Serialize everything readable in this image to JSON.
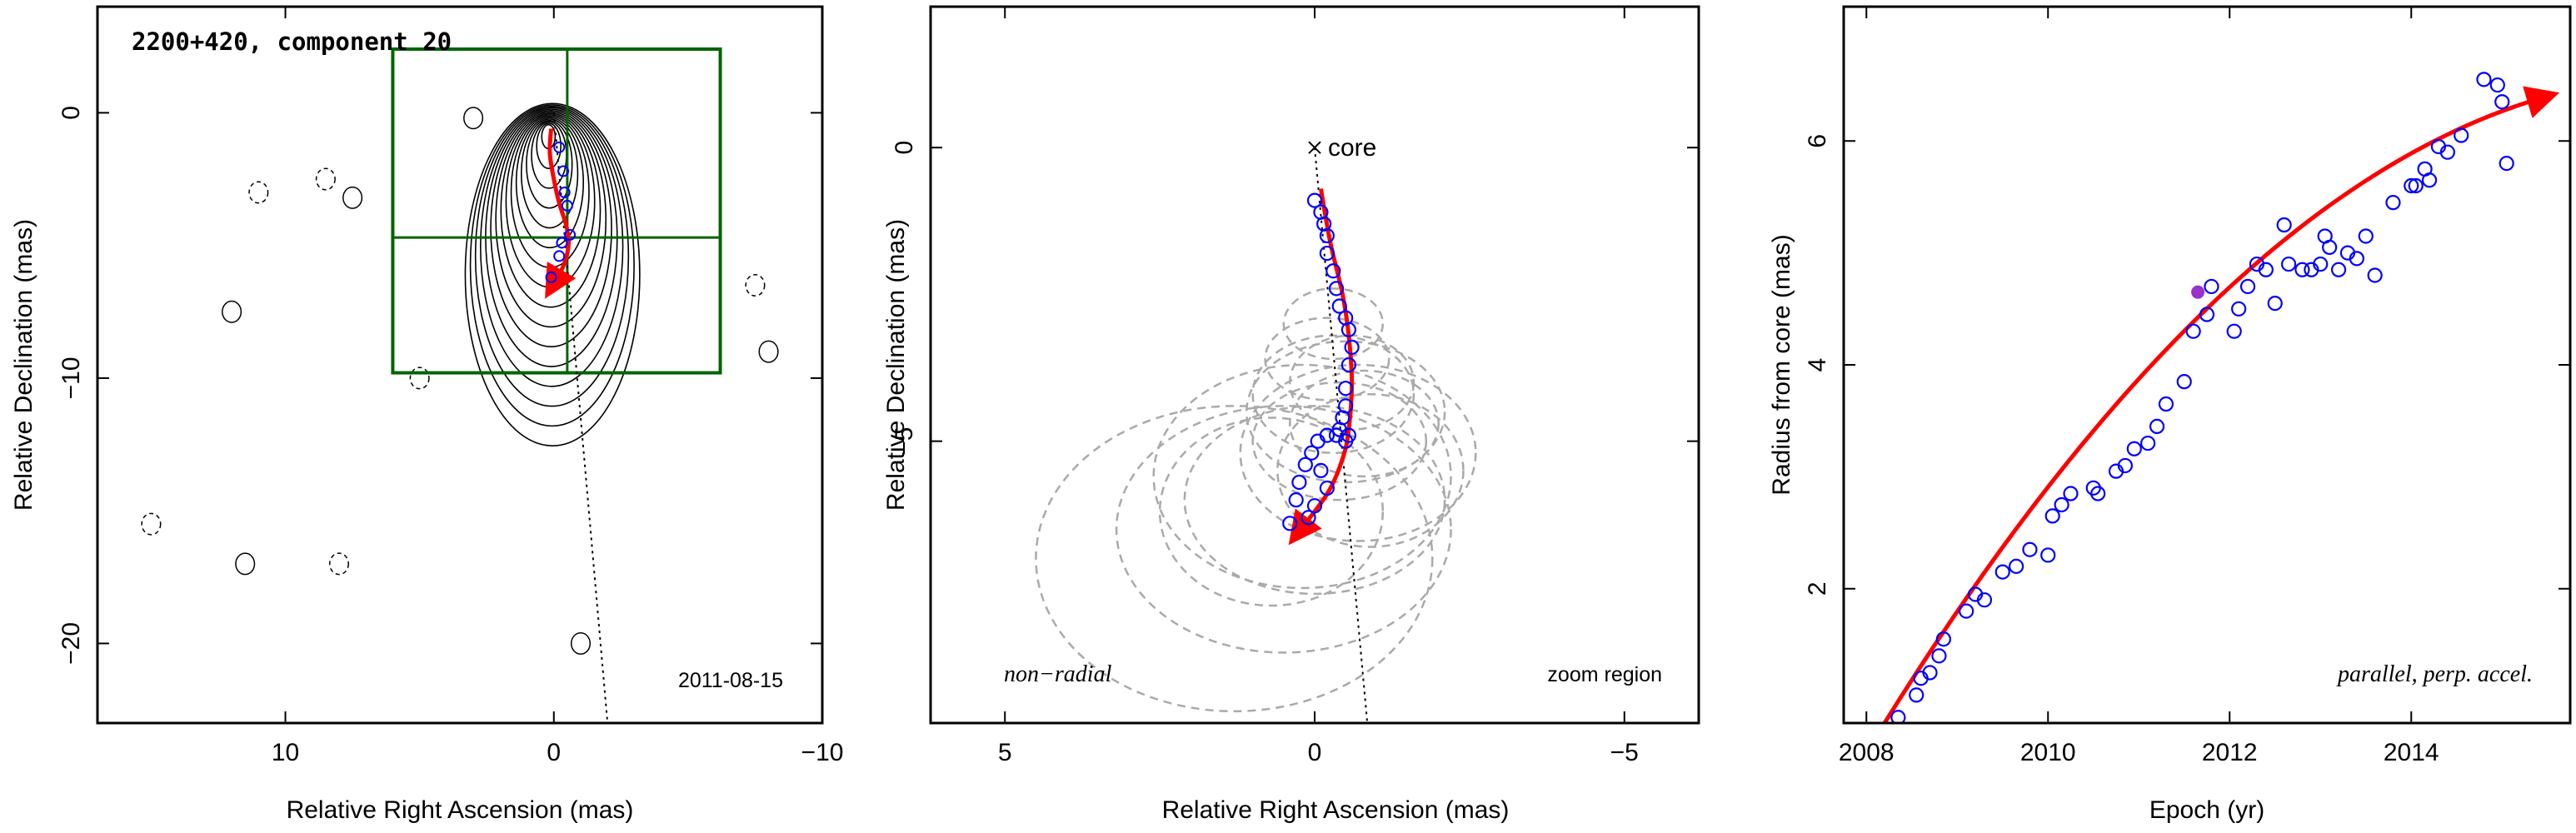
{
  "colors": {
    "fit_arrow": "#ff0000",
    "points": "#0000ff",
    "zoom_box": "#006400",
    "ellipses": "#aaaaaa",
    "contours": "#000000"
  },
  "chart_data": [
    {
      "type": "contour",
      "id": "map",
      "title": "2200+420, component 20",
      "xlabel": "Relative Right Ascension (mas)",
      "ylabel": "Relative Declination (mas)",
      "xlim": [
        17,
        -10
      ],
      "ylim": [
        -23,
        4
      ],
      "xticks": [
        10,
        0,
        -10
      ],
      "yticks": [
        0,
        -10,
        -20
      ],
      "xtick_labels": [
        "10",
        "0",
        "−10"
      ],
      "ytick_labels": [
        "0",
        "−10",
        "−20"
      ],
      "date_label": "2011-08-15",
      "core": [
        0,
        0
      ],
      "zoom_box": {
        "x": [
          6,
          -6.2
        ],
        "y": [
          2.4,
          -9.8
        ],
        "cross": [
          -0.5,
          -4.7
        ]
      },
      "radial_line": {
        "from": [
          0,
          0
        ],
        "to": [
          -2,
          -23
        ]
      },
      "fit_path": {
        "x": [
          0.1,
          0.15,
          0.0,
          -0.2,
          -0.45,
          -0.55,
          -0.5,
          -0.3,
          0.1
        ],
        "y": [
          -0.6,
          -1.5,
          -2.5,
          -3.4,
          -4.2,
          -4.8,
          -5.3,
          -5.9,
          -6.6
        ]
      },
      "points": {
        "x": [
          -0.2,
          -0.35,
          -0.4,
          -0.5,
          -0.6,
          -0.3,
          -0.2,
          0.1
        ],
        "y": [
          -1.3,
          -2.2,
          -3.0,
          -3.5,
          -4.6,
          -4.9,
          -5.4,
          -6.2
        ]
      },
      "contour_peak": [
        0.2,
        -0.3
      ],
      "blobs": [
        [
          12,
          -7.5
        ],
        [
          8.5,
          -2.5
        ],
        [
          7.5,
          -3.2
        ],
        [
          11,
          -3
        ],
        [
          -8,
          -9
        ],
        [
          -7.5,
          -6.5
        ],
        [
          3,
          -0.2
        ],
        [
          15,
          -15.5
        ],
        [
          11.5,
          -17
        ],
        [
          8,
          -17
        ],
        [
          -1,
          -20
        ],
        [
          5,
          -10
        ]
      ]
    },
    {
      "type": "scatter",
      "id": "zoom",
      "xlabel": "Relative Right Ascension (mas)",
      "ylabel": "Relative Declination (mas)",
      "xlim": [
        6.2,
        -6.2
      ],
      "ylim": [
        -9.8,
        2.4
      ],
      "xticks": [
        5,
        0,
        -5
      ],
      "yticks": [
        0,
        -5
      ],
      "xtick_labels": [
        "5",
        "0",
        "−5"
      ],
      "ytick_labels": [
        "0",
        "−5"
      ],
      "core_label": "core",
      "annotation_left": "non−radial",
      "annotation_right": "zoom region",
      "radial_line": {
        "from": [
          0,
          0
        ],
        "to": [
          -0.85,
          -9.8
        ]
      },
      "fit_path": {
        "x": [
          -0.1,
          -0.25,
          -0.45,
          -0.55,
          -0.6,
          -0.55,
          -0.45,
          -0.2,
          0.3
        ],
        "y": [
          -0.7,
          -1.6,
          -2.5,
          -3.2,
          -4.0,
          -4.8,
          -5.3,
          -5.9,
          -6.6
        ]
      },
      "points": {
        "x": [
          0.0,
          -0.1,
          -0.15,
          -0.2,
          -0.2,
          -0.3,
          -0.35,
          -0.4,
          -0.5,
          -0.55,
          -0.6,
          -0.55,
          -0.5,
          -0.5,
          -0.45,
          -0.4,
          -0.55,
          -0.5,
          -0.35,
          -0.2,
          -0.05,
          0.05,
          0.15,
          0.25,
          0.3,
          0.4,
          0.1,
          0.0,
          -0.1,
          -0.2
        ],
        "y": [
          -0.9,
          -1.1,
          -1.3,
          -1.5,
          -1.8,
          -2.1,
          -2.4,
          -2.7,
          -2.9,
          -3.1,
          -3.4,
          -3.7,
          -4.1,
          -4.4,
          -4.6,
          -4.8,
          -4.9,
          -5.0,
          -4.9,
          -4.9,
          -5.0,
          -5.2,
          -5.4,
          -5.7,
          -6.0,
          -6.4,
          -6.3,
          -6.1,
          -5.5,
          -5.8
        ]
      },
      "ellipses": [
        [
          -0.4,
          -5.0,
          1.4,
          1.0
        ],
        [
          -0.6,
          -4.0,
          1.0,
          0.8
        ],
        [
          -0.3,
          -3.0,
          0.8,
          0.6
        ],
        [
          -0.5,
          -4.5,
          1.6,
          1.2
        ],
        [
          0.0,
          -6.0,
          2.1,
          1.6
        ],
        [
          0.5,
          -6.5,
          2.7,
          2.1
        ],
        [
          1.3,
          -7.0,
          3.2,
          2.6
        ],
        [
          -0.7,
          -5.2,
          1.9,
          1.5
        ],
        [
          -0.8,
          -4.7,
          1.2,
          0.9
        ],
        [
          0.2,
          -5.6,
          2.4,
          1.9
        ],
        [
          -0.2,
          -3.6,
          1.0,
          0.7
        ],
        [
          -0.9,
          -5.5,
          1.5,
          1.3
        ],
        [
          0.7,
          -6.2,
          1.8,
          1.6
        ],
        [
          -0.3,
          -4.2,
          1.3,
          1.0
        ]
      ]
    },
    {
      "type": "scatter",
      "id": "radius",
      "xlabel": "Epoch (yr)",
      "ylabel": "Radius from core (mas)",
      "annotation": "parallel, perp. accel.",
      "xlim": [
        2007.75,
        2015.75
      ],
      "ylim": [
        0.8,
        7.2
      ],
      "xticks": [
        2008,
        2010,
        2012,
        2014
      ],
      "yticks": [
        2,
        4,
        6
      ],
      "fit": {
        "x0": 2008.2,
        "x1": 2015.5,
        "y0": 0.8,
        "y1": 6.4,
        "curvature": 0.7
      },
      "highlight": [
        2011.65,
        4.65
      ],
      "x": [
        2008.35,
        2008.55,
        2008.6,
        2008.7,
        2008.8,
        2008.85,
        2009.1,
        2009.2,
        2009.3,
        2009.5,
        2009.65,
        2009.8,
        2010.0,
        2010.05,
        2010.15,
        2010.25,
        2010.5,
        2010.55,
        2010.75,
        2010.85,
        2010.95,
        2011.1,
        2011.2,
        2011.3,
        2011.5,
        2011.6,
        2011.75,
        2011.8,
        2012.05,
        2012.1,
        2012.2,
        2012.3,
        2012.4,
        2012.5,
        2012.6,
        2012.65,
        2012.8,
        2012.9,
        2013.0,
        2013.05,
        2013.1,
        2013.2,
        2013.4,
        2013.5,
        2013.6,
        2013.8,
        2014.0,
        2014.2,
        2014.3,
        2014.4,
        2014.55,
        2014.8,
        2014.95,
        2015.0,
        2015.05,
        2014.15,
        2014.05,
        2013.3
      ],
      "y": [
        0.85,
        1.05,
        1.2,
        1.25,
        1.4,
        1.55,
        1.8,
        1.95,
        1.9,
        2.15,
        2.2,
        2.35,
        2.3,
        2.65,
        2.75,
        2.85,
        2.9,
        2.85,
        3.05,
        3.1,
        3.25,
        3.3,
        3.45,
        3.65,
        3.85,
        4.3,
        4.45,
        4.7,
        4.3,
        4.5,
        4.7,
        4.9,
        4.85,
        4.55,
        5.25,
        4.9,
        4.85,
        4.85,
        4.9,
        5.15,
        5.05,
        4.85,
        4.95,
        5.15,
        4.8,
        5.45,
        5.6,
        5.65,
        5.95,
        5.9,
        6.05,
        6.55,
        6.5,
        6.35,
        5.8,
        5.75,
        5.6,
        5.0
      ]
    }
  ]
}
